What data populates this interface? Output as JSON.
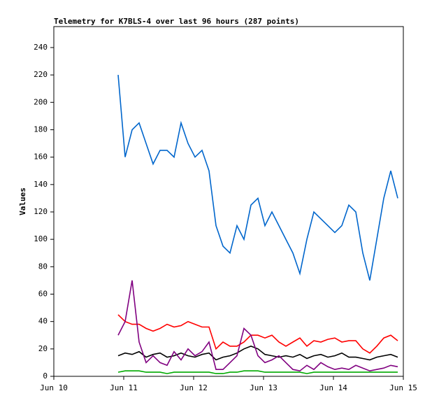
{
  "chart_data": {
    "type": "line",
    "title": "Telemetry for K7BLS-4 over last 96 hours (287 points)",
    "y_label": "Values",
    "x": [
      10.92,
      11.02,
      11.12,
      11.22,
      11.32,
      11.42,
      11.52,
      11.62,
      11.72,
      11.82,
      11.92,
      12.02,
      12.12,
      12.22,
      12.32,
      12.42,
      12.52,
      12.62,
      12.72,
      12.82,
      12.92,
      13.02,
      13.12,
      13.22,
      13.32,
      13.42,
      13.52,
      13.62,
      13.72,
      13.82,
      13.92,
      14.02,
      14.12,
      14.22,
      14.32,
      14.42,
      14.52,
      14.62,
      14.72,
      14.82,
      14.92
    ],
    "series": [
      {
        "color": "#0066cc",
        "values": [
          220,
          160,
          180,
          185,
          170,
          155,
          165,
          165,
          160,
          185,
          170,
          160,
          165,
          150,
          110,
          95,
          90,
          110,
          100,
          125,
          130,
          110,
          120,
          110,
          100,
          90,
          75,
          100,
          120,
          115,
          110,
          105,
          110,
          125,
          120,
          90,
          70,
          100,
          130,
          150,
          130
        ]
      },
      {
        "color": "#ff0000",
        "values": [
          45,
          40,
          38,
          38,
          35,
          33,
          35,
          38,
          36,
          37,
          40,
          38,
          36,
          36,
          20,
          25,
          22,
          22,
          25,
          30,
          30,
          28,
          30,
          25,
          22,
          25,
          28,
          22,
          26,
          25,
          27,
          28,
          25,
          26,
          26,
          20,
          17,
          22,
          28,
          30,
          26
        ]
      },
      {
        "color": "#000000",
        "values": [
          15,
          17,
          16,
          18,
          14,
          16,
          17,
          14,
          15,
          17,
          15,
          14,
          16,
          17,
          12,
          14,
          15,
          17,
          20,
          22,
          20,
          16,
          15,
          14,
          15,
          14,
          16,
          13,
          15,
          16,
          14,
          15,
          17,
          14,
          14,
          13,
          12,
          14,
          15,
          16,
          14
        ]
      },
      {
        "color": "#800080",
        "values": [
          30,
          40,
          70,
          25,
          10,
          15,
          10,
          8,
          18,
          12,
          20,
          15,
          18,
          25,
          5,
          5,
          10,
          15,
          35,
          30,
          15,
          10,
          12,
          15,
          10,
          5,
          4,
          8,
          5,
          10,
          7,
          5,
          6,
          5,
          8,
          6,
          4,
          5,
          6,
          8,
          7
        ]
      },
      {
        "color": "#00aa00",
        "values": [
          3,
          4,
          4,
          4,
          3,
          3,
          3,
          2,
          3,
          3,
          3,
          3,
          3,
          3,
          2,
          2,
          3,
          3,
          4,
          4,
          4,
          3,
          3,
          3,
          3,
          3,
          3,
          2,
          3,
          3,
          3,
          3,
          3,
          3,
          3,
          3,
          3,
          3,
          3,
          3,
          3
        ]
      }
    ],
    "xlim": [
      10,
      15
    ],
    "xticks": [
      {
        "value": 10,
        "label": "Jun 10"
      },
      {
        "value": 11,
        "label": "Jun 11"
      },
      {
        "value": 12,
        "label": "Jun 12"
      },
      {
        "value": 13,
        "label": "Jun 13"
      },
      {
        "value": 14,
        "label": "Jun 14"
      },
      {
        "value": 15,
        "label": "Jun 15"
      }
    ],
    "ylim": [
      0,
      255.3
    ],
    "yticks": [
      0,
      20,
      40,
      60,
      80,
      100,
      120,
      140,
      160,
      180,
      200,
      220,
      240
    ]
  }
}
